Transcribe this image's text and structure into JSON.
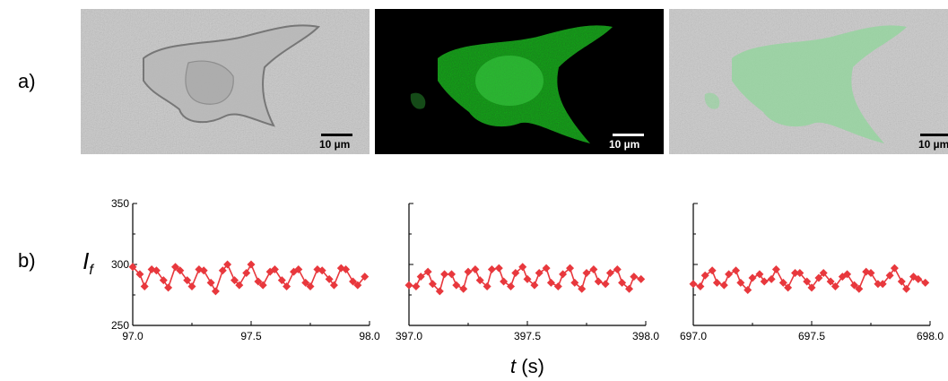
{
  "panels": {
    "a_label": "a)",
    "b_label": "b)"
  },
  "micrographs": [
    {
      "scale_label": "10 µm",
      "mode": "brightfield"
    },
    {
      "scale_label": "10 µm",
      "mode": "fluorescence"
    },
    {
      "scale_label": "10 µm",
      "mode": "overlay"
    }
  ],
  "colors": {
    "series": "#e8383d",
    "fluorescence": "#2fbf3c",
    "brightfield_bg": "#c6c6c6"
  },
  "chart_data": {
    "type": "line",
    "ylabel": "I_f",
    "xlabel": "t (s)",
    "ylim": [
      250,
      350
    ],
    "yticks": [
      250,
      300,
      350
    ],
    "subplots": [
      {
        "xlim": [
          97.0,
          98.0
        ],
        "xtick_labels": [
          "97.0",
          "97.5",
          "98.0"
        ],
        "x": [
          97.0,
          97.03,
          97.05,
          97.08,
          97.1,
          97.13,
          97.15,
          97.18,
          97.2,
          97.23,
          97.25,
          97.28,
          97.3,
          97.33,
          97.35,
          97.38,
          97.4,
          97.43,
          97.45,
          97.48,
          97.5,
          97.53,
          97.55,
          97.58,
          97.6,
          97.63,
          97.65,
          97.68,
          97.7,
          97.73,
          97.75,
          97.78,
          97.8,
          97.83,
          97.85,
          97.88,
          97.9,
          97.93,
          97.95,
          97.98
        ],
        "y": [
          298,
          292,
          282,
          296,
          295,
          287,
          281,
          298,
          295,
          287,
          282,
          296,
          295,
          285,
          278,
          295,
          300,
          287,
          283,
          293,
          300,
          286,
          283,
          294,
          296,
          287,
          282,
          294,
          296,
          285,
          282,
          296,
          295,
          288,
          283,
          297,
          296,
          286,
          283,
          290
        ]
      },
      {
        "xlim": [
          397.0,
          398.0
        ],
        "xtick_labels": [
          "397.0",
          "397.5",
          "398.0"
        ],
        "x": [
          397.0,
          397.03,
          397.05,
          397.08,
          397.1,
          397.13,
          397.15,
          397.18,
          397.2,
          397.23,
          397.25,
          397.28,
          397.3,
          397.33,
          397.35,
          397.38,
          397.4,
          397.43,
          397.45,
          397.48,
          397.5,
          397.53,
          397.55,
          397.58,
          397.6,
          397.63,
          397.65,
          397.68,
          397.7,
          397.73,
          397.75,
          397.78,
          397.8,
          397.83,
          397.85,
          397.88,
          397.9,
          397.93,
          397.95,
          397.98
        ],
        "y": [
          283,
          282,
          290,
          294,
          284,
          278,
          292,
          292,
          283,
          280,
          294,
          296,
          287,
          282,
          296,
          297,
          286,
          282,
          293,
          298,
          288,
          283,
          293,
          297,
          285,
          282,
          292,
          297,
          285,
          280,
          293,
          296,
          286,
          284,
          293,
          296,
          285,
          280,
          290,
          288
        ]
      },
      {
        "xlim": [
          697.0,
          698.0
        ],
        "xtick_labels": [
          "697.0",
          "697.5",
          "698.0"
        ],
        "x": [
          697.0,
          697.03,
          697.05,
          697.08,
          697.1,
          697.13,
          697.15,
          697.18,
          697.2,
          697.23,
          697.25,
          697.28,
          697.3,
          697.33,
          697.35,
          697.38,
          697.4,
          697.43,
          697.45,
          697.48,
          697.5,
          697.53,
          697.55,
          697.58,
          697.6,
          697.63,
          697.65,
          697.68,
          697.7,
          697.73,
          697.75,
          697.78,
          697.8,
          697.83,
          697.85,
          697.88,
          697.9,
          697.93,
          697.95,
          697.98
        ],
        "y": [
          284,
          282,
          291,
          295,
          285,
          283,
          292,
          295,
          285,
          279,
          289,
          292,
          286,
          288,
          296,
          285,
          281,
          293,
          293,
          286,
          281,
          289,
          293,
          286,
          282,
          290,
          292,
          283,
          280,
          294,
          293,
          284,
          284,
          291,
          297,
          286,
          280,
          290,
          288,
          285
        ]
      }
    ]
  }
}
